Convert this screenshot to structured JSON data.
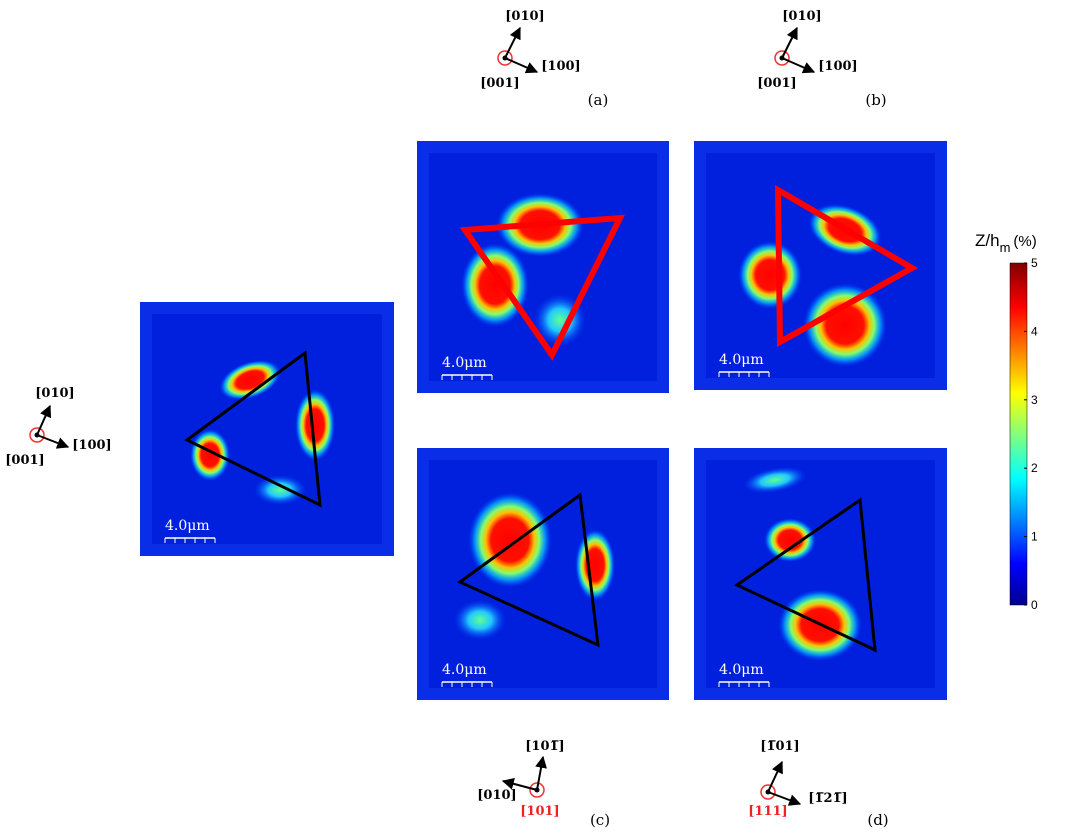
{
  "reference": {
    "up": "[010]",
    "side": "[100]",
    "normal": "[001]",
    "scale_bar": "4.0μm"
  },
  "panels": [
    {
      "label": "(a)",
      "up": "[010]",
      "side": "[100]",
      "normal": "[001]",
      "scale_bar": "4.0μm"
    },
    {
      "label": "(b)",
      "up": "[010]",
      "side": "[100]",
      "normal": "[001]",
      "scale_bar": "4.0μm"
    },
    {
      "label": "(c)",
      "up": "[101̅]",
      "side": "[010]",
      "normal": "[101]",
      "scale_bar": "4.0μm"
    },
    {
      "label": "(d)",
      "up": "[1̅01]",
      "side": "[1̅21̅]",
      "normal": "[111]",
      "scale_bar": "4.0μm"
    }
  ],
  "colorbar": {
    "label": "Z/h",
    "label_sub": "m",
    "label_unit": "(%)",
    "ticks": [
      0,
      1,
      2,
      3,
      4,
      5
    ],
    "lim": [
      0,
      5
    ]
  }
}
